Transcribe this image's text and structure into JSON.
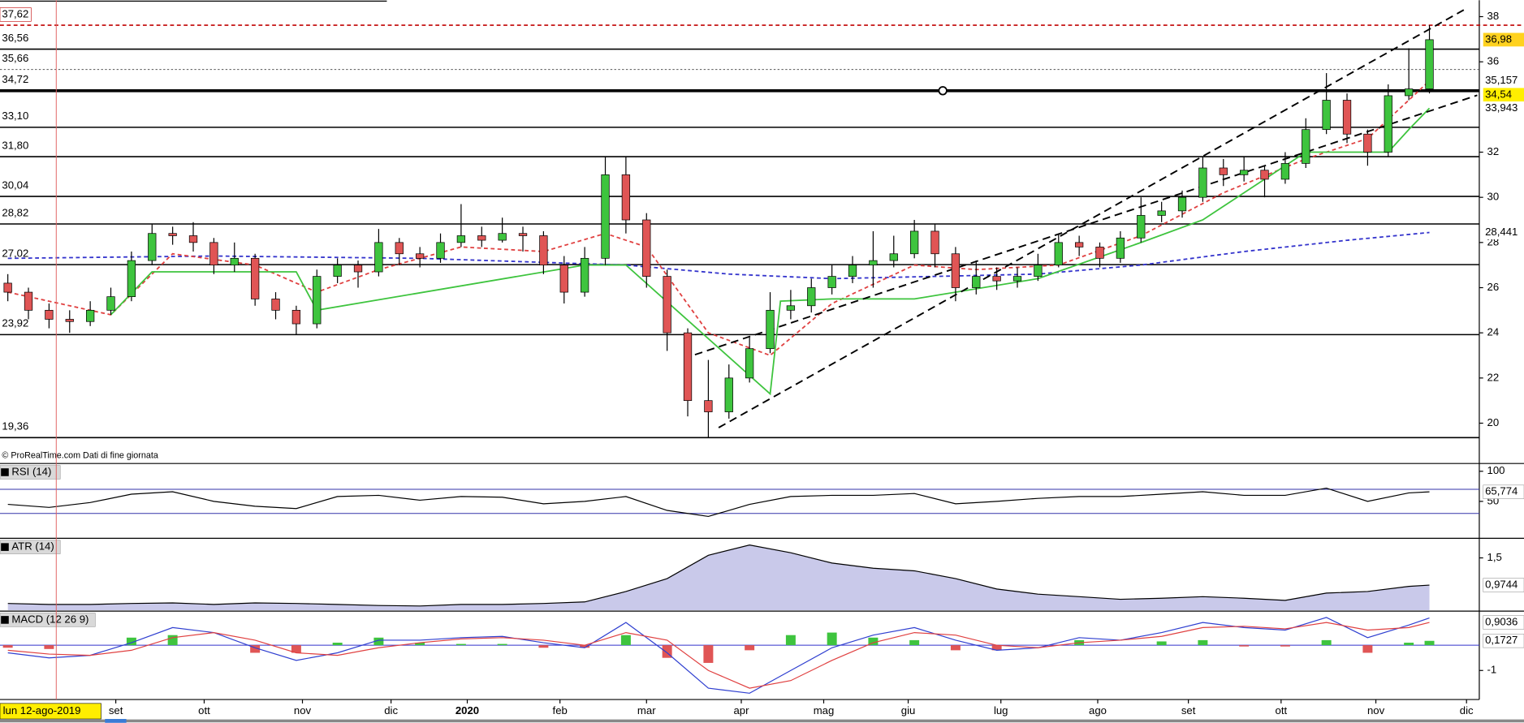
{
  "chart_data": {
    "type": "candlestick",
    "footer": "© ProRealTime.com  Dati di fine giornata",
    "xlim": [
      -0.38,
      71.42
    ],
    "xticks": [
      {
        "value": 5.24,
        "label": "set"
      },
      {
        "value": 9.53,
        "label": "ott"
      },
      {
        "value": 14.3,
        "label": "nov"
      },
      {
        "value": 18.6,
        "label": "dic"
      },
      {
        "value": 22.3,
        "label": "2020"
      },
      {
        "value": 26.8,
        "label": "feb"
      },
      {
        "value": 31.0,
        "label": "mar"
      },
      {
        "value": 35.6,
        "label": "apr"
      },
      {
        "value": 39.6,
        "label": "mag"
      },
      {
        "value": 43.7,
        "label": "giu"
      },
      {
        "value": 48.2,
        "label": "lug"
      },
      {
        "value": 52.9,
        "label": "ago"
      },
      {
        "value": 57.3,
        "label": "set"
      },
      {
        "value": 61.8,
        "label": "ott"
      },
      {
        "value": 66.4,
        "label": "nov"
      },
      {
        "value": 70.8,
        "label": "dic"
      }
    ],
    "cursor": {
      "x": 2.35,
      "label": "lun 12-ago-2019",
      "color": "#e06060"
    },
    "ylim": [
      18.86,
      38.73
    ],
    "yticks": [
      20,
      22,
      24,
      26,
      28,
      30,
      32,
      36,
      38
    ],
    "up_color": "#3ec43e",
    "down_color": "#e05555",
    "x": [
      0,
      1,
      2,
      3,
      4,
      5,
      6,
      7,
      8,
      9,
      10,
      11,
      12,
      13,
      14,
      15,
      16,
      17,
      18,
      19,
      20,
      21,
      22,
      23,
      24,
      25,
      26,
      27,
      28,
      29,
      30,
      31,
      32,
      33,
      34,
      35,
      36,
      37,
      38,
      39,
      40,
      41,
      42,
      43,
      44,
      45,
      46,
      47,
      48,
      49,
      50,
      51,
      52,
      53,
      54,
      55,
      56,
      57,
      58,
      59,
      60,
      61,
      62,
      63,
      64,
      65,
      66,
      67,
      68,
      69
    ],
    "open": [
      26.2,
      25.8,
      25.0,
      24.6,
      24.5,
      25.0,
      25.6,
      27.2,
      28.4,
      28.3,
      28.0,
      27.0,
      27.3,
      25.5,
      25.0,
      24.4,
      26.5,
      27.0,
      26.7,
      28.0,
      27.5,
      27.3,
      28.0,
      28.3,
      28.1,
      28.4,
      28.3,
      27.0,
      25.8,
      27.3,
      31.0,
      29.0,
      26.5,
      24.0,
      21.0,
      20.5,
      22.0,
      23.3,
      25.0,
      25.2,
      26.0,
      26.5,
      27.0,
      27.2,
      27.5,
      28.5,
      27.5,
      26.0,
      26.5,
      26.3,
      26.5,
      27.0,
      28.0,
      27.8,
      27.3,
      28.2,
      29.2,
      29.4,
      30.0,
      31.3,
      31.0,
      31.2,
      30.8,
      31.5,
      33.0,
      34.3,
      32.8,
      32.0,
      34.5,
      34.8
    ],
    "high": [
      26.6,
      26.0,
      25.3,
      25.0,
      25.4,
      26.0,
      27.6,
      28.8,
      28.7,
      28.9,
      28.2,
      28.0,
      27.5,
      25.8,
      25.2,
      26.8,
      27.3,
      27.2,
      28.6,
      28.2,
      27.8,
      28.4,
      29.7,
      28.7,
      29.1,
      28.7,
      28.5,
      27.4,
      27.8,
      31.8,
      31.8,
      29.3,
      26.8,
      24.2,
      22.8,
      22.6,
      23.8,
      25.8,
      25.9,
      26.4,
      27.0,
      27.4,
      28.5,
      28.3,
      29.0,
      28.8,
      27.8,
      27.2,
      26.9,
      26.9,
      27.5,
      28.4,
      28.3,
      28.0,
      28.5,
      30.0,
      29.8,
      30.3,
      31.8,
      31.7,
      31.8,
      31.4,
      32.0,
      33.5,
      35.5,
      34.6,
      33.0,
      35.0,
      36.6,
      37.62
    ],
    "low": [
      25.4,
      24.6,
      24.2,
      24.0,
      24.3,
      24.8,
      25.4,
      27.0,
      27.9,
      27.6,
      26.6,
      26.7,
      25.2,
      24.6,
      23.92,
      24.2,
      26.2,
      26.0,
      26.5,
      27.0,
      26.9,
      27.1,
      27.8,
      27.8,
      28.0,
      27.6,
      26.6,
      25.3,
      25.6,
      27.0,
      28.4,
      26.0,
      23.2,
      20.3,
      19.36,
      20.2,
      21.8,
      23.1,
      24.6,
      24.9,
      25.7,
      26.2,
      26.0,
      26.9,
      27.3,
      26.9,
      25.4,
      25.7,
      25.9,
      26.0,
      26.3,
      26.9,
      27.4,
      26.9,
      27.1,
      28.0,
      28.9,
      29.1,
      29.8,
      30.5,
      30.7,
      30.0,
      30.6,
      31.3,
      32.8,
      32.4,
      31.4,
      31.8,
      34.3,
      34.6
    ],
    "close": [
      25.8,
      25.0,
      24.6,
      24.5,
      25.0,
      25.6,
      27.2,
      28.4,
      28.3,
      28.0,
      27.0,
      27.3,
      25.5,
      25.0,
      24.4,
      26.5,
      27.0,
      26.7,
      28.0,
      27.5,
      27.3,
      28.0,
      28.3,
      28.1,
      28.4,
      28.3,
      27.0,
      25.8,
      27.3,
      31.0,
      29.0,
      26.5,
      24.0,
      21.0,
      20.5,
      22.0,
      23.3,
      25.0,
      25.2,
      26.0,
      26.5,
      27.0,
      27.2,
      27.5,
      28.5,
      27.5,
      26.0,
      26.5,
      26.3,
      26.5,
      27.0,
      28.0,
      27.8,
      27.3,
      28.2,
      29.2,
      29.4,
      30.0,
      31.3,
      31.0,
      31.2,
      30.8,
      31.5,
      33.0,
      34.3,
      32.8,
      32.0,
      34.5,
      34.8,
      36.98
    ],
    "levels": [
      {
        "value": 37.62,
        "label": "37,62",
        "color": "#c00000",
        "style": "dashed"
      },
      {
        "value": 36.56,
        "label": "36,56",
        "color": "#000000",
        "style": "solid"
      },
      {
        "value": 35.66,
        "label": "35,66",
        "color": "#555555",
        "style": "dotted"
      },
      {
        "value": 34.72,
        "label": "34,72",
        "color": "#000000",
        "style": "thick"
      },
      {
        "value": 33.1,
        "label": "33,10",
        "color": "#000000",
        "style": "solid"
      },
      {
        "value": 31.8,
        "label": "31,80",
        "color": "#000000",
        "style": "solid"
      },
      {
        "value": 30.04,
        "label": "30,04",
        "color": "#000000",
        "style": "solid"
      },
      {
        "value": 28.82,
        "label": "28,82",
        "color": "#000000",
        "style": "solid"
      },
      {
        "value": 27.02,
        "label": "27,02",
        "color": "#000000",
        "style": "solid"
      },
      {
        "value": 23.92,
        "label": "23,92",
        "color": "#000000",
        "style": "solid"
      },
      {
        "value": 19.36,
        "label": "19,36",
        "color": "#000000",
        "style": "solid"
      }
    ],
    "price_labels": [
      {
        "value": 36.98,
        "label": "36,98",
        "color": "#000000",
        "background": "#ffd21f"
      },
      {
        "value": 35.157,
        "label": "35,157",
        "color": "#e04040",
        "background": "#ffffff"
      },
      {
        "value": 34.54,
        "label": "34,54",
        "color": "#000000",
        "background": "#ffee00"
      },
      {
        "value": 33.943,
        "label": "33,943",
        "color": "#3ec43e",
        "background": "#ffffff"
      },
      {
        "value": 28.441,
        "label": "28,441",
        "color": "#3030c0",
        "background": "#ffffff"
      }
    ],
    "overlays": [
      {
        "color": "#3333cc",
        "style": "dashed",
        "x": [
          0,
          10,
          20,
          30,
          35,
          40,
          45,
          50,
          55,
          60,
          65,
          69
        ],
        "values": [
          27.3,
          27.4,
          27.3,
          27.0,
          26.6,
          26.4,
          26.5,
          26.6,
          27.0,
          27.6,
          28.1,
          28.441
        ]
      },
      {
        "color": "#e04040",
        "style": "dashed",
        "x": [
          0,
          5,
          8,
          12,
          15,
          18,
          22,
          26,
          29,
          31,
          34,
          37,
          40,
          44,
          47,
          51,
          55,
          59,
          63,
          66,
          69
        ],
        "values": [
          25.8,
          24.8,
          27.5,
          27.0,
          25.8,
          26.8,
          27.8,
          27.6,
          28.4,
          27.8,
          24.0,
          23.0,
          25.3,
          27.0,
          26.8,
          27.0,
          28.3,
          30.2,
          31.7,
          32.6,
          35.157
        ]
      },
      {
        "color": "#3ec43e",
        "style": "solid",
        "x": [
          5,
          7,
          14,
          15,
          28,
          29,
          30,
          37,
          37.5,
          40,
          44,
          50,
          55,
          58,
          63,
          65,
          67,
          68,
          69
        ],
        "values": [
          24.8,
          26.7,
          26.7,
          25.0,
          27.0,
          27.0,
          27.0,
          21.3,
          25.4,
          25.5,
          25.5,
          26.4,
          28.0,
          29.0,
          32.0,
          32.0,
          32.0,
          33.0,
          33.943
        ]
      }
    ],
    "trendlines": [
      {
        "color": "#000000",
        "x": [
          34.5,
          70.85
        ],
        "values": [
          19.8,
          38.39
        ]
      },
      {
        "color": "#000000",
        "x": [
          33.35,
          71.32
        ],
        "values": [
          23.03,
          34.52
        ]
      }
    ],
    "indicator_x": [
      0,
      2,
      4,
      6,
      8,
      10,
      12,
      14,
      16,
      18,
      20,
      22,
      24,
      26,
      28,
      30,
      32,
      34,
      36,
      38,
      40,
      42,
      44,
      46,
      48,
      50,
      52,
      54,
      56,
      58,
      60,
      62,
      64,
      66,
      68,
      69
    ],
    "panels": [
      {
        "title": "RSI (14)",
        "ylim": [
          -9.7,
          111.3
        ],
        "yticks": [
          100,
          50
        ],
        "bands": [
          70,
          30
        ],
        "series": [
          {
            "color": "#000000",
            "kind": "line",
            "values": [
              45,
              40,
              48,
              62,
              66,
              50,
              42,
              38,
              58,
              60,
              52,
              58,
              57,
              46,
              50,
              58,
              35,
              25,
              45,
              58,
              60,
              60,
              63,
              46,
              50,
              55,
              58,
              58,
              62,
              66,
              60,
              60,
              72,
              50,
              64,
              65.774
            ]
          }
        ],
        "last_labels": [
          {
            "value": 65.774,
            "label": "65,774",
            "color": "#000000"
          }
        ]
      },
      {
        "title": "ATR (14)",
        "ylim": [
          0.49,
          1.86
        ],
        "yticks": [
          {
            "value": 1.5,
            "label": "1,5"
          }
        ],
        "bands": [],
        "series": [
          {
            "color": "#000000",
            "kind": "area",
            "values": [
              0.62,
              0.6,
              0.6,
              0.62,
              0.63,
              0.6,
              0.63,
              0.62,
              0.6,
              0.58,
              0.57,
              0.6,
              0.6,
              0.62,
              0.65,
              0.85,
              1.1,
              1.55,
              1.75,
              1.6,
              1.4,
              1.3,
              1.25,
              1.1,
              0.9,
              0.8,
              0.75,
              0.7,
              0.72,
              0.75,
              0.72,
              0.68,
              0.82,
              0.85,
              0.95,
              0.9744
            ]
          }
        ],
        "last_labels": [
          {
            "value": 0.9744,
            "label": "0,9744",
            "color": "#000000"
          }
        ]
      },
      {
        "title": "MACD (12 26 9)",
        "ylim": [
          -2.15,
          1.31
        ],
        "yticks": [
          -1
        ],
        "bands": [
          0
        ],
        "series": [
          {
            "color": "#3ec43e",
            "kind": "histogram",
            "values": [
              -0.1,
              -0.15,
              0.0,
              0.3,
              0.4,
              0.0,
              -0.3,
              -0.3,
              0.1,
              0.3,
              0.1,
              0.05,
              0.05,
              -0.1,
              -0.1,
              0.4,
              -0.5,
              -0.7,
              -0.2,
              0.4,
              0.5,
              0.3,
              0.2,
              -0.2,
              -0.2,
              0.0,
              0.2,
              0.0,
              0.15,
              0.2,
              -0.05,
              -0.05,
              0.2,
              -0.3,
              0.1,
              0.1727
            ]
          },
          {
            "color": "#2f3fd0",
            "kind": "line",
            "values": [
              -0.3,
              -0.5,
              -0.4,
              0.1,
              0.7,
              0.5,
              -0.1,
              -0.6,
              -0.3,
              0.2,
              0.2,
              0.3,
              0.35,
              0.1,
              -0.1,
              0.9,
              -0.3,
              -1.7,
              -1.9,
              -1.0,
              -0.1,
              0.4,
              0.7,
              0.2,
              -0.2,
              -0.1,
              0.3,
              0.2,
              0.5,
              0.9,
              0.7,
              0.6,
              1.1,
              0.3,
              0.8,
              1.08
            ]
          },
          {
            "color": "#e04040",
            "kind": "line",
            "values": [
              -0.2,
              -0.35,
              -0.4,
              -0.2,
              0.3,
              0.5,
              0.2,
              -0.3,
              -0.4,
              -0.1,
              0.1,
              0.25,
              0.3,
              0.2,
              0.0,
              0.5,
              0.2,
              -1.0,
              -1.7,
              -1.4,
              -0.6,
              0.1,
              0.5,
              0.4,
              0.0,
              -0.1,
              0.1,
              0.2,
              0.35,
              0.7,
              0.75,
              0.65,
              0.9,
              0.6,
              0.7,
              0.9036
            ]
          }
        ],
        "last_labels": [
          {
            "value": 0.9036,
            "label": "0,9036",
            "color": "#e04040"
          },
          {
            "value": 0.1727,
            "label": "0,1727",
            "color": "#3ec43e"
          }
        ]
      }
    ]
  }
}
